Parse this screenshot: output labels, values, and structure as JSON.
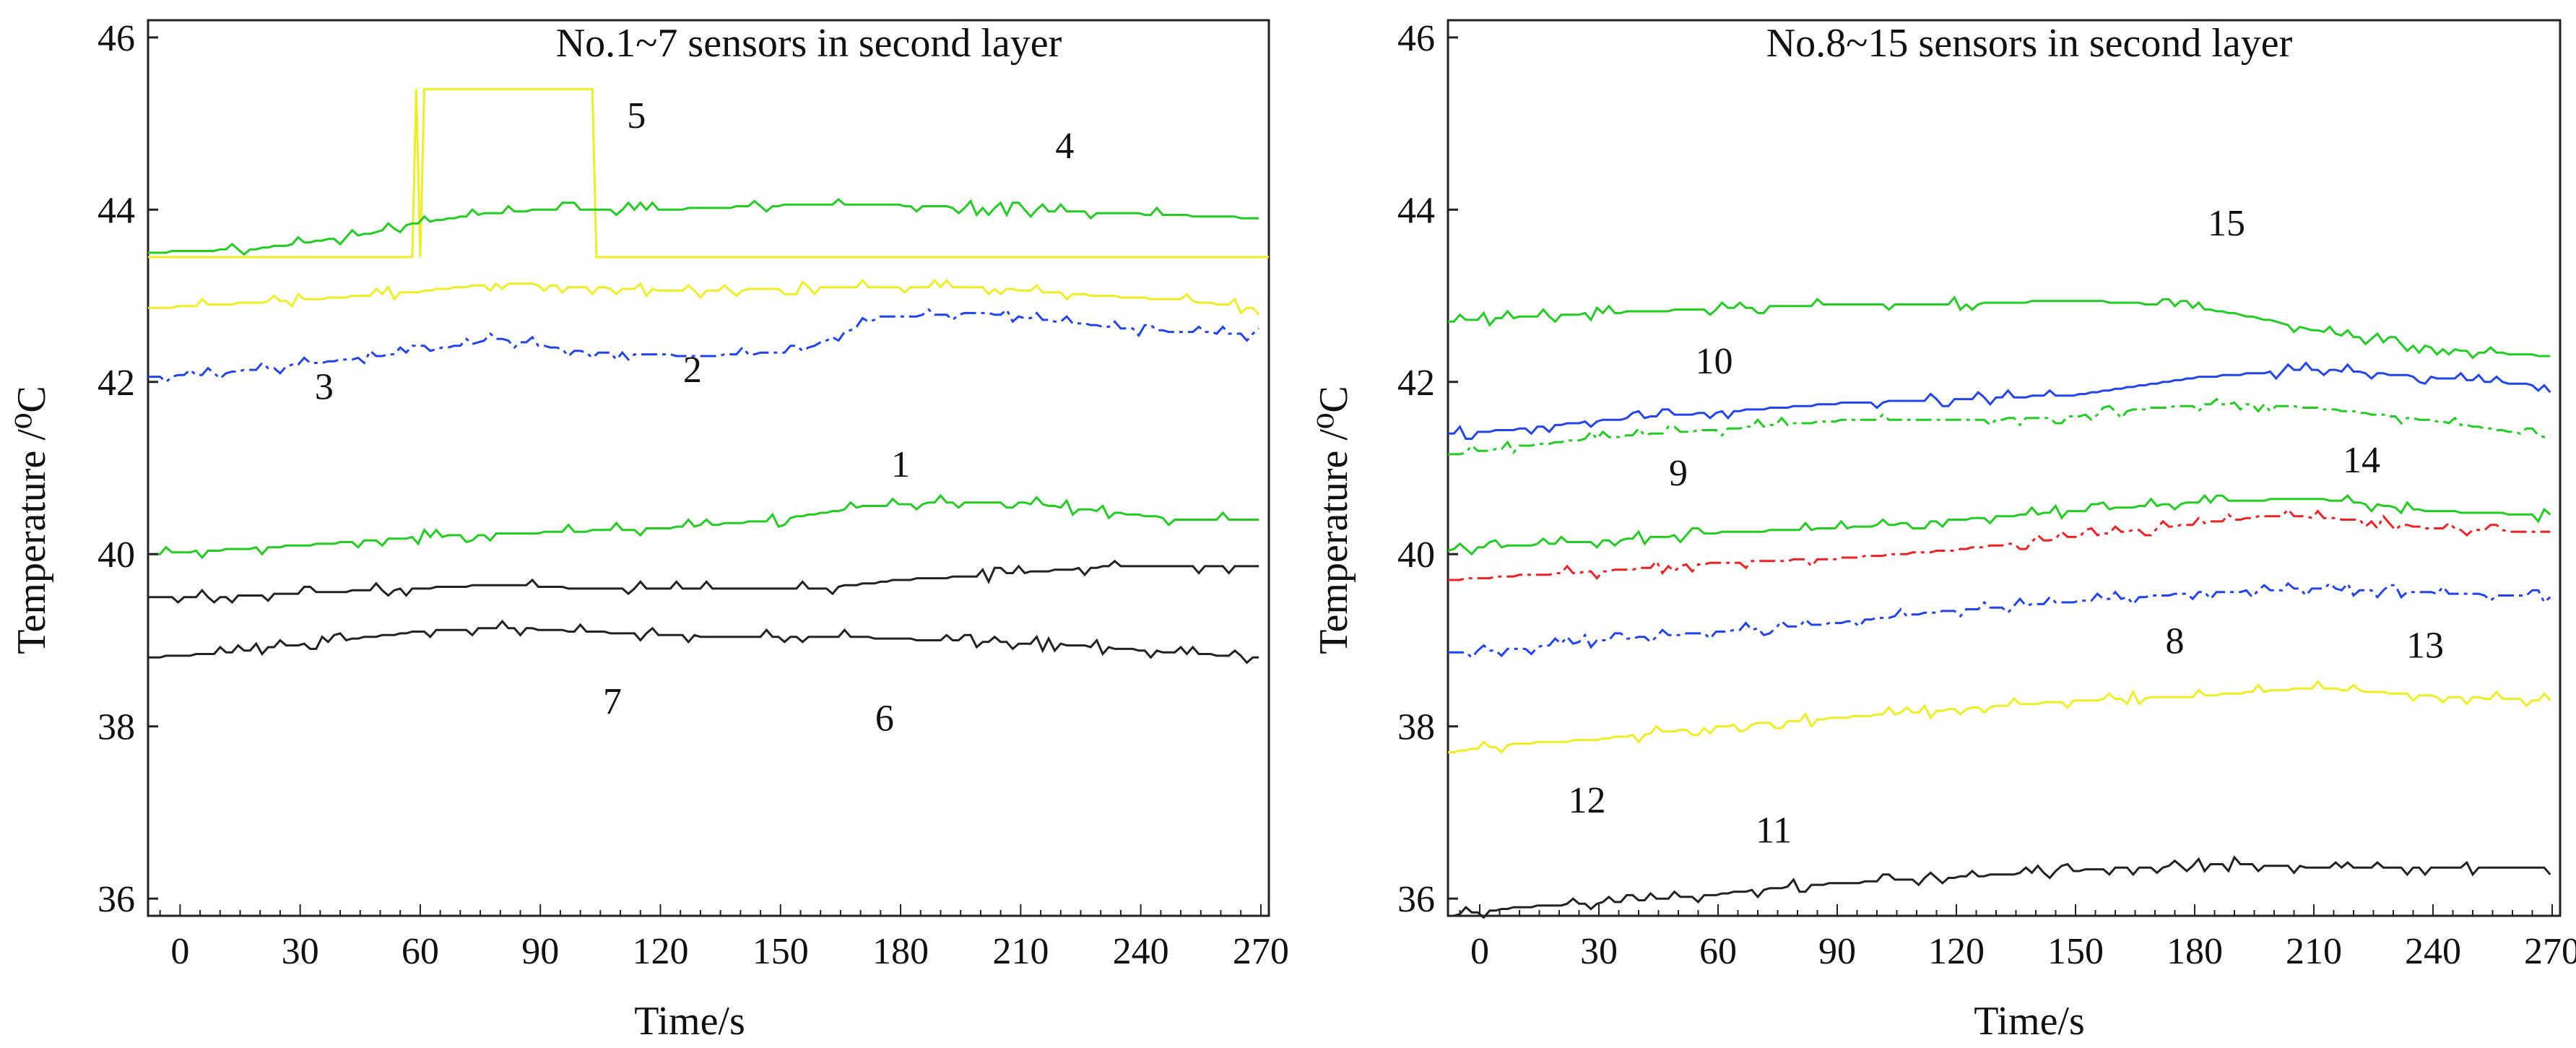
{
  "chart_data": [
    {
      "type": "line",
      "title": "No.1~7 sensors in second layer",
      "xlabel": "Time/s",
      "ylabel": "Temperature /⁰C",
      "xlim": [
        -8,
        272
      ],
      "ylim": [
        35.8,
        46.2
      ],
      "xticks": [
        0,
        30,
        60,
        90,
        120,
        150,
        180,
        210,
        240,
        270
      ],
      "xtick_labels": [
        "0",
        "30",
        "60",
        "90",
        "120",
        "150",
        "180",
        "210",
        "240",
        "270"
      ],
      "yticks": [
        36,
        38,
        40,
        42,
        44,
        46
      ],
      "ytick_labels": [
        "36",
        "38",
        "40",
        "42",
        "44",
        "46"
      ],
      "grid": false,
      "series": [
        {
          "name": "1",
          "color": "#22cc22",
          "dash": "solid",
          "label_at": [
            180,
            40.9
          ],
          "x": [
            -8,
            10,
            30,
            60,
            90,
            120,
            150,
            170,
            190,
            210,
            230,
            250,
            270
          ],
          "y": [
            40.0,
            40.05,
            40.1,
            40.2,
            40.25,
            40.3,
            40.4,
            40.55,
            40.6,
            40.6,
            40.5,
            40.4,
            40.4
          ]
        },
        {
          "name": "2",
          "color": "#2244ee",
          "dash": "dashdot",
          "label_at": [
            128,
            42.0
          ],
          "x": [
            -8,
            10,
            30,
            60,
            80,
            100,
            130,
            155,
            175,
            200,
            220,
            240,
            270
          ],
          "y": [
            42.05,
            42.1,
            42.2,
            42.35,
            42.5,
            42.35,
            42.3,
            42.35,
            42.75,
            42.8,
            42.7,
            42.6,
            42.55
          ]
        },
        {
          "name": "3",
          "color": "#eeee22",
          "dash": "solid",
          "label_at": [
            36,
            41.8
          ],
          "x": [
            -8,
            10,
            30,
            60,
            80,
            100,
            130,
            160,
            200,
            230,
            250,
            270
          ],
          "y": [
            42.85,
            42.9,
            42.95,
            43.05,
            43.15,
            43.1,
            43.05,
            43.1,
            43.1,
            43.0,
            42.95,
            42.85
          ]
        },
        {
          "name": "4",
          "color": "#eeee22",
          "dash": "solid",
          "label_at": [
            221,
            44.6
          ],
          "x": [
            -8,
            58,
            59,
            60,
            61,
            62,
            103,
            104,
            272
          ],
          "y": [
            43.45,
            43.45,
            45.4,
            43.45,
            45.4,
            45.4,
            45.4,
            43.45,
            43.45
          ]
        },
        {
          "name": "5",
          "color": "#22cc22",
          "dash": "solid",
          "label_at": [
            114,
            44.95
          ],
          "x": [
            -8,
            20,
            45,
            60,
            75,
            90,
            120,
            150,
            180,
            210,
            240,
            270
          ],
          "y": [
            43.5,
            43.55,
            43.7,
            43.85,
            43.95,
            44.0,
            44.0,
            44.05,
            44.05,
            44.0,
            43.95,
            43.9
          ]
        },
        {
          "name": "6",
          "color": "#222222",
          "dash": "solid",
          "label_at": [
            176,
            37.95
          ],
          "x": [
            -8,
            10,
            30,
            60,
            80,
            100,
            130,
            160,
            190,
            220,
            250,
            270
          ],
          "y": [
            38.8,
            38.85,
            38.95,
            39.1,
            39.15,
            39.1,
            39.05,
            39.05,
            39.0,
            38.95,
            38.85,
            38.8
          ]
        },
        {
          "name": "7",
          "color": "#222222",
          "dash": "solid",
          "label_at": [
            108,
            38.15
          ],
          "x": [
            -8,
            10,
            30,
            60,
            80,
            100,
            130,
            160,
            180,
            200,
            230,
            270
          ],
          "y": [
            39.5,
            39.5,
            39.55,
            39.6,
            39.65,
            39.6,
            39.6,
            39.6,
            39.7,
            39.75,
            39.85,
            39.85
          ]
        }
      ]
    },
    {
      "type": "line",
      "title": "No.8~15 sensors in second layer",
      "xlabel": "Time/s",
      "ylabel": "Temperature /⁰C",
      "xlim": [
        -8,
        272
      ],
      "ylim": [
        35.8,
        46.2
      ],
      "xticks": [
        0,
        30,
        60,
        90,
        120,
        150,
        180,
        210,
        240,
        270
      ],
      "xtick_labels": [
        "0",
        "30",
        "60",
        "90",
        "120",
        "150",
        "180",
        "210",
        "240",
        "270"
      ],
      "yticks": [
        36,
        38,
        40,
        42,
        44,
        46
      ],
      "ytick_labels": [
        "36",
        "38",
        "40",
        "42",
        "44",
        "46"
      ],
      "grid": false,
      "series": [
        {
          "name": "8",
          "color": "#2244ee",
          "dash": "dashdot",
          "label_at": [
            175,
            38.85
          ],
          "x": [
            -8,
            10,
            30,
            60,
            90,
            120,
            150,
            180,
            210,
            240,
            270
          ],
          "y": [
            38.85,
            38.9,
            39.0,
            39.1,
            39.2,
            39.35,
            39.45,
            39.55,
            39.6,
            39.55,
            39.5
          ]
        },
        {
          "name": "9",
          "color": "#22cc22",
          "dash": "solid",
          "label_at": [
            50,
            40.8
          ],
          "x": [
            -8,
            10,
            30,
            60,
            90,
            120,
            150,
            180,
            210,
            240,
            270
          ],
          "y": [
            40.05,
            40.1,
            40.15,
            40.25,
            40.3,
            40.4,
            40.5,
            40.6,
            40.65,
            40.5,
            40.45
          ]
        },
        {
          "name": "10",
          "color": "#2244ee",
          "dash": "solid",
          "label_at": [
            59,
            42.1
          ],
          "x": [
            -8,
            10,
            30,
            60,
            90,
            120,
            150,
            180,
            210,
            240,
            270
          ],
          "y": [
            41.4,
            41.45,
            41.55,
            41.65,
            41.75,
            41.8,
            41.85,
            42.05,
            42.15,
            42.05,
            41.95
          ]
        },
        {
          "name": "11",
          "color": "#222222",
          "dash": "solid",
          "label_at": [
            74,
            36.65
          ],
          "x": [
            -8,
            10,
            30,
            60,
            80,
            100,
            120,
            140,
            160,
            190,
            220,
            250,
            270
          ],
          "y": [
            35.8,
            35.9,
            35.95,
            36.05,
            36.15,
            36.2,
            36.25,
            36.3,
            36.35,
            36.4,
            36.35,
            36.35,
            36.35
          ]
        },
        {
          "name": "12",
          "color": "#eeee22",
          "dash": "solid",
          "label_at": [
            27,
            37.0
          ],
          "x": [
            -8,
            10,
            30,
            60,
            90,
            120,
            150,
            180,
            210,
            240,
            270
          ],
          "y": [
            37.7,
            37.8,
            37.85,
            38.0,
            38.1,
            38.2,
            38.3,
            38.35,
            38.45,
            38.35,
            38.3
          ]
        },
        {
          "name": "13",
          "color": "#ee2222",
          "dash": "dashdot",
          "label_at": [
            238,
            38.8
          ],
          "x": [
            -8,
            10,
            30,
            60,
            90,
            120,
            150,
            180,
            200,
            220,
            240,
            270
          ],
          "y": [
            39.7,
            39.75,
            39.8,
            39.9,
            39.95,
            40.05,
            40.2,
            40.35,
            40.45,
            40.4,
            40.3,
            40.25
          ]
        },
        {
          "name": "14",
          "color": "#22cc22",
          "dash": "dashdot",
          "label_at": [
            222,
            40.95
          ],
          "x": [
            -8,
            10,
            30,
            60,
            90,
            120,
            150,
            170,
            190,
            210,
            240,
            270
          ],
          "y": [
            41.15,
            41.25,
            41.35,
            41.45,
            41.55,
            41.55,
            41.6,
            41.7,
            41.75,
            41.7,
            41.55,
            41.35
          ]
        },
        {
          "name": "15",
          "color": "#22cc22",
          "dash": "solid",
          "label_at": [
            188,
            43.7
          ],
          "x": [
            -8,
            10,
            30,
            60,
            90,
            120,
            150,
            170,
            190,
            210,
            230,
            250,
            270
          ],
          "y": [
            42.7,
            42.75,
            42.8,
            42.85,
            42.9,
            42.9,
            42.95,
            42.9,
            42.8,
            42.6,
            42.45,
            42.35,
            42.3
          ]
        }
      ]
    }
  ]
}
